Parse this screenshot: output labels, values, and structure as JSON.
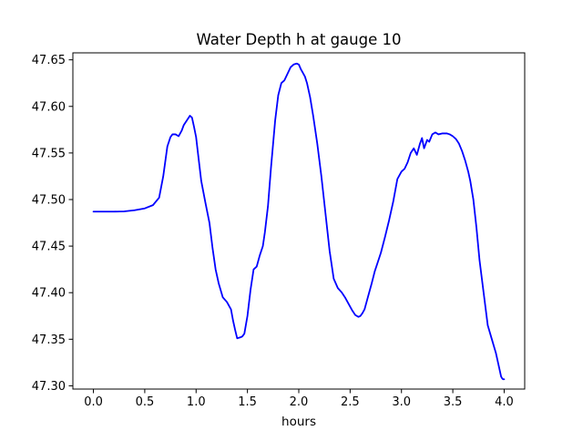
{
  "chart_data": {
    "type": "line",
    "title": "Water Depth h at gauge 10",
    "xlabel": "hours",
    "ylabel": "",
    "xlim": [
      -0.2,
      4.2
    ],
    "ylim": [
      47.2965,
      47.6575
    ],
    "x_ticks": [
      0.0,
      0.5,
      1.0,
      1.5,
      2.0,
      2.5,
      3.0,
      3.5,
      4.0
    ],
    "x_tick_labels": [
      "0.0",
      "0.5",
      "1.0",
      "1.5",
      "2.0",
      "2.5",
      "3.0",
      "3.5",
      "4.0"
    ],
    "y_ticks": [
      47.3,
      47.35,
      47.4,
      47.45,
      47.5,
      47.55,
      47.6,
      47.65
    ],
    "y_tick_labels": [
      "47.30",
      "47.35",
      "47.40",
      "47.45",
      "47.50",
      "47.55",
      "47.60",
      "47.65"
    ],
    "grid": false,
    "legend": false,
    "series": [
      {
        "color": "#0000ff",
        "x": [
          0.0,
          0.1,
          0.2,
          0.3,
          0.4,
          0.5,
          0.58,
          0.64,
          0.68,
          0.72,
          0.75,
          0.77,
          0.8,
          0.83,
          0.86,
          0.88,
          0.91,
          0.94,
          0.96,
          0.98,
          1.0,
          1.02,
          1.05,
          1.09,
          1.13,
          1.16,
          1.19,
          1.22,
          1.26,
          1.3,
          1.34,
          1.36,
          1.38,
          1.4,
          1.43,
          1.45,
          1.47,
          1.5,
          1.53,
          1.56,
          1.59,
          1.62,
          1.65,
          1.67,
          1.7,
          1.73,
          1.77,
          1.8,
          1.83,
          1.86,
          1.89,
          1.92,
          1.95,
          1.98,
          2.0,
          2.02,
          2.04,
          2.06,
          2.08,
          2.11,
          2.14,
          2.18,
          2.22,
          2.26,
          2.3,
          2.34,
          2.38,
          2.42,
          2.45,
          2.48,
          2.52,
          2.55,
          2.58,
          2.6,
          2.62,
          2.64,
          2.66,
          2.68,
          2.71,
          2.74,
          2.77,
          2.8,
          2.84,
          2.88,
          2.92,
          2.96,
          3.0,
          3.03,
          3.06,
          3.09,
          3.12,
          3.15,
          3.18,
          3.2,
          3.22,
          3.25,
          3.27,
          3.3,
          3.33,
          3.36,
          3.4,
          3.44,
          3.47,
          3.5,
          3.53,
          3.56,
          3.59,
          3.62,
          3.65,
          3.67,
          3.7,
          3.73,
          3.76,
          3.8,
          3.84,
          3.88,
          3.92,
          3.95,
          3.97,
          3.98,
          3.99,
          4.0
        ],
        "y": [
          47.487,
          47.487,
          47.487,
          47.4873,
          47.4885,
          47.4905,
          47.494,
          47.502,
          47.525,
          47.557,
          47.567,
          47.57,
          47.57,
          47.568,
          47.574,
          47.58,
          47.585,
          47.59,
          47.588,
          47.578,
          47.567,
          47.548,
          47.52,
          47.497,
          47.475,
          47.448,
          47.425,
          47.41,
          47.395,
          47.39,
          47.382,
          47.37,
          47.36,
          47.351,
          47.352,
          47.353,
          47.356,
          47.375,
          47.403,
          47.425,
          47.428,
          47.44,
          47.45,
          47.465,
          47.493,
          47.535,
          47.585,
          47.612,
          47.625,
          47.628,
          47.635,
          47.642,
          47.645,
          47.646,
          47.645,
          47.64,
          47.636,
          47.632,
          47.625,
          47.61,
          47.59,
          47.56,
          47.525,
          47.485,
          47.445,
          47.415,
          47.405,
          47.4,
          47.395,
          47.389,
          47.381,
          47.376,
          47.374,
          47.375,
          47.378,
          47.382,
          47.39,
          47.398,
          47.41,
          47.423,
          47.433,
          47.443,
          47.46,
          47.478,
          47.498,
          47.522,
          47.53,
          47.533,
          47.54,
          47.55,
          47.555,
          47.548,
          47.56,
          47.566,
          47.555,
          47.564,
          47.562,
          47.57,
          47.572,
          47.57,
          47.571,
          47.571,
          47.57,
          47.568,
          47.565,
          47.56,
          47.552,
          47.542,
          47.53,
          47.52,
          47.5,
          47.47,
          47.435,
          47.4,
          47.365,
          47.35,
          47.335,
          47.32,
          47.31,
          47.308,
          47.307,
          47.307
        ]
      }
    ]
  }
}
